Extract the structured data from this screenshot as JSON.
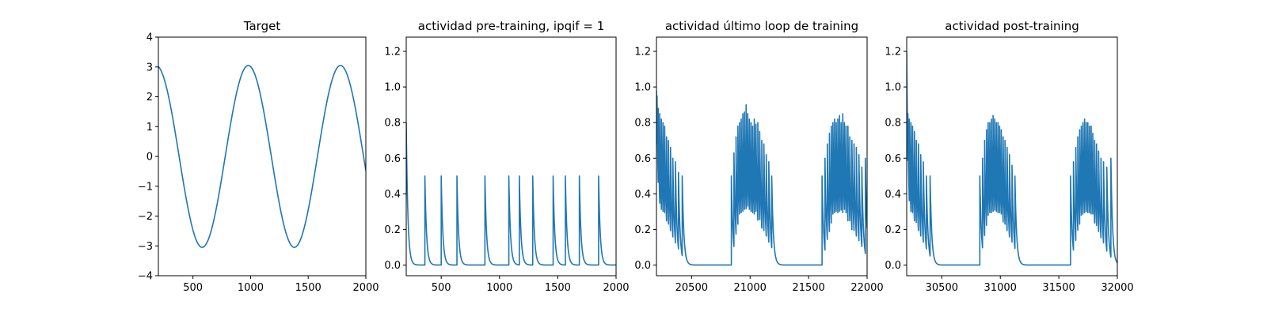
{
  "colors": {
    "series": "#1f77b4",
    "background": "#ffffff",
    "axes": "#000000"
  },
  "chart_data": [
    {
      "type": "line",
      "title": "Target",
      "xlabel": "",
      "ylabel": "",
      "xlim": [
        200,
        2000
      ],
      "ylim": [
        -4,
        4
      ],
      "xticks": [
        500,
        1000,
        1500,
        2000
      ],
      "yticks": [
        -4,
        -3,
        -2,
        -1,
        0,
        1,
        2,
        3,
        4
      ],
      "grid": false,
      "series": [
        {
          "signal": "sine",
          "x_start": 200,
          "x_end": 2000,
          "amplitude": 3.05,
          "period": 800,
          "peak_x": 980
        }
      ]
    },
    {
      "type": "line",
      "title": "actividad pre-training, ipqif = 1",
      "xlabel": "",
      "ylabel": "",
      "xlim": [
        200,
        2000
      ],
      "ylim": [
        -0.06,
        1.28
      ],
      "xticks": [
        500,
        1000,
        1500,
        2000
      ],
      "yticks": [
        0.0,
        0.2,
        0.4,
        0.6,
        0.8,
        1.0,
        1.2
      ],
      "grid": false,
      "series": [
        {
          "signal": "spikes",
          "x_start": 200,
          "x_end": 2000,
          "initial_value": 0.8,
          "baseline": 0.0,
          "decay": 14,
          "spike_times": [
            360,
            500,
            635,
            875,
            1080,
            1170,
            1285,
            1460,
            1565,
            1685,
            1850
          ],
          "spike_heights": [
            0.5,
            0.5,
            0.5,
            0.5,
            0.5,
            0.5,
            0.5,
            0.5,
            0.5,
            0.5,
            0.5
          ]
        }
      ]
    },
    {
      "type": "line",
      "title": "actividad último loop de training",
      "xlabel": "",
      "ylabel": "",
      "xlim": [
        20200,
        22000
      ],
      "ylim": [
        -0.06,
        1.28
      ],
      "xticks": [
        20500,
        21000,
        21500,
        22000
      ],
      "yticks": [
        0.0,
        0.2,
        0.4,
        0.6,
        0.8,
        1.0,
        1.2
      ],
      "grid": false,
      "series": [
        {
          "signal": "spikes",
          "x_start": 20200,
          "x_end": 22000,
          "initial_value": 0.98,
          "baseline": 0.0,
          "decay": 14,
          "spike_times": [
            20205,
            20215,
            20228,
            20242,
            20256,
            20270,
            20286,
            20302,
            20320,
            20340,
            20362,
            20388,
            20420,
            20840,
            20862,
            20880,
            20896,
            20910,
            20924,
            20938,
            20952,
            20966,
            20980,
            20994,
            21008,
            21022,
            21036,
            21050,
            21066,
            21082,
            21100,
            21118,
            21138,
            21160,
            21185,
            21615,
            21640,
            21660,
            21678,
            21694,
            21708,
            21722,
            21736,
            21750,
            21764,
            21778,
            21792,
            21806,
            21820,
            21836,
            21852,
            21870,
            21888,
            21908,
            21930,
            21955,
            21985
          ],
          "spike_heights": [
            0.95,
            0.88,
            0.85,
            0.82,
            0.8,
            0.78,
            0.72,
            0.7,
            0.66,
            0.6,
            0.58,
            0.52,
            0.5,
            0.5,
            0.63,
            0.72,
            0.78,
            0.8,
            0.82,
            0.85,
            0.86,
            0.9,
            0.85,
            0.82,
            0.8,
            0.78,
            0.82,
            0.79,
            0.8,
            0.75,
            0.7,
            0.68,
            0.62,
            0.58,
            0.5,
            0.5,
            0.6,
            0.68,
            0.74,
            0.78,
            0.8,
            0.82,
            0.8,
            0.82,
            0.84,
            0.8,
            0.85,
            0.8,
            0.78,
            0.78,
            0.72,
            0.7,
            0.68,
            0.66,
            0.62,
            0.55,
            0.6
          ]
        }
      ]
    },
    {
      "type": "line",
      "title": "actividad post-training",
      "xlabel": "",
      "ylabel": "",
      "xlim": [
        30200,
        32000
      ],
      "ylim": [
        -0.06,
        1.28
      ],
      "xticks": [
        30500,
        31000,
        31500,
        32000
      ],
      "yticks": [
        0.0,
        0.2,
        0.4,
        0.6,
        0.8,
        1.0,
        1.2
      ],
      "grid": false,
      "series": [
        {
          "signal": "spikes",
          "x_start": 30200,
          "x_end": 32000,
          "initial_value": 1.2,
          "baseline": 0.0,
          "decay": 14,
          "spike_times": [
            30210,
            30222,
            30236,
            30250,
            30266,
            30282,
            30300,
            30320,
            30342,
            30368,
            30400,
            30825,
            30848,
            30866,
            30882,
            30896,
            30910,
            30924,
            30938,
            30952,
            30966,
            30980,
            30994,
            31008,
            31024,
            31040,
            31058,
            31078,
            31100,
            31125,
            31600,
            31625,
            31645,
            31662,
            31678,
            31692,
            31706,
            31720,
            31734,
            31748,
            31762,
            31776,
            31790,
            31806,
            31822,
            31840,
            31860,
            31882,
            31910,
            31945
          ],
          "spike_heights": [
            0.85,
            0.82,
            0.8,
            0.78,
            0.75,
            0.7,
            0.68,
            0.62,
            0.58,
            0.5,
            0.5,
            0.5,
            0.6,
            0.7,
            0.76,
            0.8,
            0.8,
            0.82,
            0.84,
            0.82,
            0.8,
            0.8,
            0.78,
            0.76,
            0.72,
            0.7,
            0.66,
            0.62,
            0.56,
            0.5,
            0.5,
            0.58,
            0.66,
            0.72,
            0.76,
            0.78,
            0.8,
            0.82,
            0.8,
            0.8,
            0.78,
            0.78,
            0.74,
            0.7,
            0.68,
            0.64,
            0.6,
            0.58,
            0.55,
            0.6
          ]
        }
      ]
    }
  ]
}
